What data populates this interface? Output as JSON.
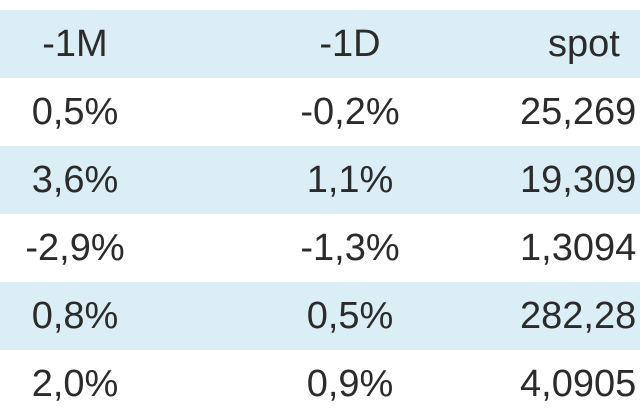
{
  "table": {
    "headers": [
      "-1M",
      "-1D",
      "spot"
    ],
    "rows": [
      [
        "0,5%",
        "-0,2%",
        "25,269"
      ],
      [
        "3,6%",
        "1,1%",
        "19,309"
      ],
      [
        "-2,9%",
        "-1,3%",
        "1,3094"
      ],
      [
        "0,8%",
        "0,5%",
        "282,28"
      ],
      [
        "2,0%",
        "0,9%",
        "4,0905"
      ]
    ]
  },
  "colors": {
    "row_shade": "#dbeef6",
    "row_plain": "#ffffff",
    "text": "#2b2b2b"
  }
}
